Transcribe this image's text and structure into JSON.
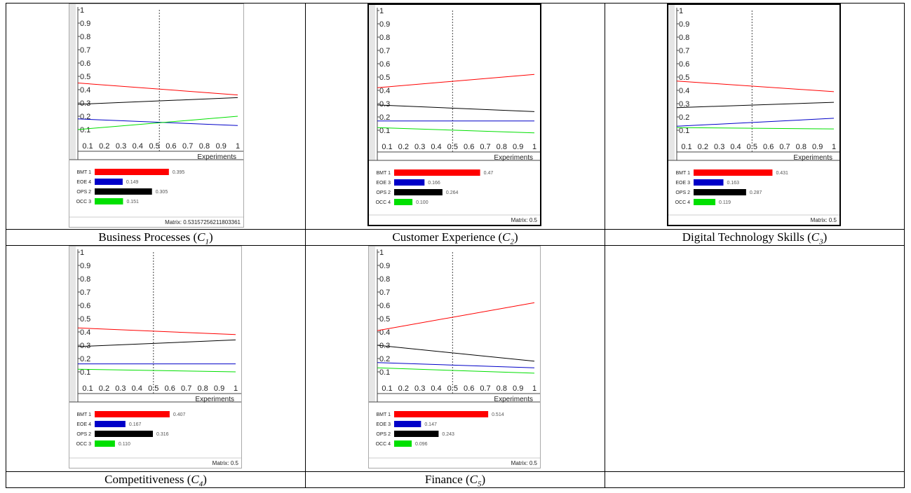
{
  "panels": [
    {
      "caption": "Business Processes",
      "sub": "1",
      "matrix_label": "Matrix: 0.53157256211803361",
      "chart_data": {
        "type": "line",
        "xlabel": "Experiments",
        "x_ticks": [
          "0.1",
          "0.2",
          "0.3",
          "0.4",
          "0.5",
          "0.6",
          "0.7",
          "0.8",
          "0.9",
          "1"
        ],
        "y_ticks": [
          "0.1",
          "0.2",
          "0.3",
          "0.4",
          "0.5",
          "0.6",
          "0.7",
          "0.8",
          "0.9",
          "1"
        ],
        "ylim": [
          0,
          1
        ],
        "marker_x": 0.53,
        "series": [
          {
            "name": "BMT 1",
            "color": "#ff0000",
            "line_start": 0.45,
            "line_end": 0.36,
            "value": 0.395,
            "value_label": "0.395"
          },
          {
            "name": "EOE 4",
            "color": "#0000c8",
            "line_start": 0.18,
            "line_end": 0.13,
            "value": 0.149,
            "value_label": "0.149"
          },
          {
            "name": "OPS 2",
            "color": "#000000",
            "line_start": 0.29,
            "line_end": 0.34,
            "value": 0.305,
            "value_label": "0.305"
          },
          {
            "name": "OCC 3",
            "color": "#00e000",
            "line_start": 0.1,
            "line_end": 0.2,
            "value": 0.151,
            "value_label": "0.151"
          }
        ]
      }
    },
    {
      "caption": "Customer Experience",
      "sub": "2",
      "matrix_label": "Matrix: 0.5",
      "chart_data": {
        "type": "line",
        "xlabel": "Experiments",
        "x_ticks": [
          "0.1",
          "0.2",
          "0.3",
          "0.4",
          "0.5",
          "0.6",
          "0.7",
          "0.8",
          "0.9",
          "1"
        ],
        "y_ticks": [
          "0.1",
          "0.2",
          "0.3",
          "0.4",
          "0.5",
          "0.6",
          "0.7",
          "0.8",
          "0.9",
          "1"
        ],
        "ylim": [
          0,
          1
        ],
        "marker_x": 0.5,
        "series": [
          {
            "name": "BMT 1",
            "color": "#ff0000",
            "line_start": 0.42,
            "line_end": 0.52,
            "value": 0.47,
            "value_label": "0.47"
          },
          {
            "name": "EOE 3",
            "color": "#0000c8",
            "line_start": 0.17,
            "line_end": 0.17,
            "value": 0.166,
            "value_label": "0.166"
          },
          {
            "name": "OPS 2",
            "color": "#000000",
            "line_start": 0.29,
            "line_end": 0.24,
            "value": 0.264,
            "value_label": "0.264"
          },
          {
            "name": "OCC 4",
            "color": "#00e000",
            "line_start": 0.12,
            "line_end": 0.08,
            "value": 0.1,
            "value_label": "0.100"
          }
        ]
      }
    },
    {
      "caption": "Digital Technology Skills",
      "sub": "3",
      "matrix_label": "Matrix: 0.5",
      "chart_data": {
        "type": "line",
        "xlabel": "Experiments",
        "x_ticks": [
          "0.1",
          "0.2",
          "0.3",
          "0.4",
          "0.5",
          "0.6",
          "0.7",
          "0.8",
          "0.9",
          "1"
        ],
        "y_ticks": [
          "0.1",
          "0.2",
          "0.3",
          "0.4",
          "0.5",
          "0.6",
          "0.7",
          "0.8",
          "0.9",
          "1"
        ],
        "ylim": [
          0,
          1
        ],
        "marker_x": 0.5,
        "series": [
          {
            "name": "BMT 1",
            "color": "#ff0000",
            "line_start": 0.47,
            "line_end": 0.39,
            "value": 0.431,
            "value_label": "0.431"
          },
          {
            "name": "EOE 3",
            "color": "#0000c8",
            "line_start": 0.13,
            "line_end": 0.19,
            "value": 0.163,
            "value_label": "0.163"
          },
          {
            "name": "OPS 2",
            "color": "#000000",
            "line_start": 0.27,
            "line_end": 0.31,
            "value": 0.287,
            "value_label": "0.287"
          },
          {
            "name": "OCC 4",
            "color": "#00e000",
            "line_start": 0.12,
            "line_end": 0.11,
            "value": 0.119,
            "value_label": "0.119"
          }
        ]
      }
    },
    {
      "caption": "Competitiveness",
      "sub": "4",
      "matrix_label": "Matrix: 0.5",
      "chart_data": {
        "type": "line",
        "xlabel": "Experiments",
        "x_ticks": [
          "0.1",
          "0.2",
          "0.3",
          "0.4",
          "0.5",
          "0.6",
          "0.7",
          "0.8",
          "0.9",
          "1"
        ],
        "y_ticks": [
          "0.1",
          "0.2",
          "0.3",
          "0.4",
          "0.5",
          "0.6",
          "0.7",
          "0.8",
          "0.9",
          "1"
        ],
        "ylim": [
          0,
          1
        ],
        "marker_x": 0.5,
        "series": [
          {
            "name": "BMT 1",
            "color": "#ff0000",
            "line_start": 0.43,
            "line_end": 0.38,
            "value": 0.407,
            "value_label": "0.407"
          },
          {
            "name": "EOE 4",
            "color": "#0000c8",
            "line_start": 0.16,
            "line_end": 0.16,
            "value": 0.167,
            "value_label": "0.167"
          },
          {
            "name": "OPS 2",
            "color": "#000000",
            "line_start": 0.29,
            "line_end": 0.34,
            "value": 0.316,
            "value_label": "0.316"
          },
          {
            "name": "OCC 3",
            "color": "#00e000",
            "line_start": 0.12,
            "line_end": 0.1,
            "value": 0.11,
            "value_label": "0.110"
          }
        ]
      }
    },
    {
      "caption": "Finance",
      "sub": "5",
      "matrix_label": "Matrix: 0.5",
      "chart_data": {
        "type": "line",
        "xlabel": "Experiments",
        "x_ticks": [
          "0.1",
          "0.2",
          "0.3",
          "0.4",
          "0.5",
          "0.6",
          "0.7",
          "0.8",
          "0.9",
          "1"
        ],
        "y_ticks": [
          "0.1",
          "0.2",
          "0.3",
          "0.4",
          "0.5",
          "0.6",
          "0.7",
          "0.8",
          "0.9",
          "1"
        ],
        "ylim": [
          0,
          1
        ],
        "marker_x": 0.5,
        "series": [
          {
            "name": "BMT 1",
            "color": "#ff0000",
            "line_start": 0.41,
            "line_end": 0.62,
            "value": 0.514,
            "value_label": "0.514"
          },
          {
            "name": "EOE 3",
            "color": "#0000c8",
            "line_start": 0.17,
            "line_end": 0.13,
            "value": 0.147,
            "value_label": "0.147"
          },
          {
            "name": "OPS 2",
            "color": "#000000",
            "line_start": 0.3,
            "line_end": 0.18,
            "value": 0.243,
            "value_label": "0.243"
          },
          {
            "name": "OCC 4",
            "color": "#00e000",
            "line_start": 0.13,
            "line_end": 0.09,
            "value": 0.096,
            "value_label": "0.096"
          }
        ]
      }
    }
  ]
}
